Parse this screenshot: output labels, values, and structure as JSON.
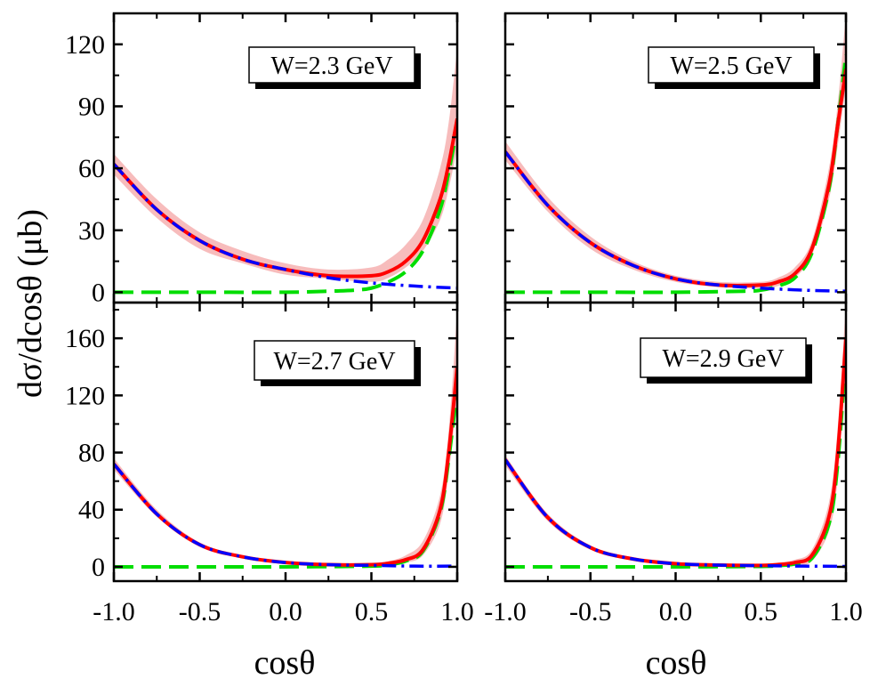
{
  "figure": {
    "ylabel": "dσ/dcosθ (μb)",
    "xlabel": "cosθ"
  },
  "colors": {
    "band": "#f4a6a6",
    "total": "#ff0000",
    "u_channel": "#0000ff",
    "t_channel": "#00dd00",
    "axis": "#000000"
  },
  "chart_data": [
    {
      "type": "line",
      "label": "W=2.3 GeV",
      "xlim": [
        -1.0,
        1.0
      ],
      "ylim": [
        -5,
        135
      ],
      "xticks": [
        -1.0,
        -0.5,
        0.0,
        0.5,
        1.0
      ],
      "yticks": [
        0,
        30,
        60,
        90,
        120
      ],
      "series": [
        {
          "style": "band",
          "x": [
            -1.0,
            -0.75,
            -0.5,
            -0.25,
            0.0,
            0.25,
            0.5,
            0.6,
            0.7,
            0.8,
            0.9,
            0.95,
            1.0
          ],
          "lower": [
            57,
            36,
            21,
            14,
            8.5,
            6.5,
            5,
            7,
            12,
            20,
            35,
            50,
            70
          ],
          "upper": [
            67,
            45,
            29,
            20,
            14,
            11,
            12,
            16,
            23,
            35,
            60,
            82,
            118
          ]
        },
        {
          "style": "solid",
          "color_key": "total",
          "x": [
            -1.0,
            -0.75,
            -0.5,
            -0.25,
            0.0,
            0.25,
            0.5,
            0.6,
            0.7,
            0.8,
            0.9,
            0.95,
            1.0
          ],
          "y": [
            62,
            40,
            25,
            16,
            11,
            8,
            8,
            10,
            15,
            25,
            45,
            62,
            84
          ]
        },
        {
          "style": "dashdot",
          "color_key": "u_channel",
          "x": [
            -1.0,
            -0.75,
            -0.5,
            -0.25,
            0.0,
            0.25,
            0.5,
            0.75,
            1.0
          ],
          "y": [
            62,
            40,
            25,
            16,
            11,
            7,
            4.5,
            3,
            2
          ]
        },
        {
          "style": "dashed",
          "color_key": "t_channel",
          "x": [
            -1.0,
            -0.5,
            0.0,
            0.25,
            0.4,
            0.5,
            0.6,
            0.7,
            0.8,
            0.9,
            0.95,
            1.0
          ],
          "y": [
            0,
            0,
            0,
            0.5,
            1,
            2,
            5,
            10,
            20,
            40,
            58,
            80
          ]
        }
      ]
    },
    {
      "type": "line",
      "label": "W=2.5 GeV",
      "xlim": [
        -1.0,
        1.0
      ],
      "ylim": [
        -5,
        135
      ],
      "xticks": [
        -1.0,
        -0.5,
        0.0,
        0.5,
        1.0
      ],
      "yticks": [
        0,
        30,
        60,
        90,
        120
      ],
      "series": [
        {
          "style": "band",
          "x": [
            -1.0,
            -0.75,
            -0.5,
            -0.25,
            0.0,
            0.25,
            0.5,
            0.6,
            0.7,
            0.8,
            0.9,
            0.95,
            1.0
          ],
          "lower": [
            64,
            39,
            21,
            11,
            5,
            2.5,
            2,
            3,
            7,
            18,
            45,
            70,
            100
          ],
          "upper": [
            73,
            46,
            27,
            15,
            8,
            5,
            5,
            7,
            12,
            25,
            60,
            90,
            135
          ]
        },
        {
          "style": "solid",
          "color_key": "total",
          "x": [
            -1.0,
            -0.75,
            -0.5,
            -0.25,
            0.0,
            0.25,
            0.5,
            0.6,
            0.7,
            0.8,
            0.9,
            0.95,
            1.0
          ],
          "y": [
            68,
            42,
            24,
            13,
            6.5,
            3.5,
            3.5,
            5,
            9,
            21,
            52,
            80,
            108
          ]
        },
        {
          "style": "dashdot",
          "color_key": "u_channel",
          "x": [
            -1.0,
            -0.75,
            -0.5,
            -0.25,
            0.0,
            0.25,
            0.5,
            0.75,
            1.0
          ],
          "y": [
            68,
            42,
            24,
            13,
            6.5,
            3.5,
            2,
            1,
            0.5
          ]
        },
        {
          "style": "dashed",
          "color_key": "t_channel",
          "x": [
            -1.0,
            -0.5,
            0.0,
            0.4,
            0.5,
            0.6,
            0.7,
            0.8,
            0.9,
            0.95,
            1.0
          ],
          "y": [
            0,
            0,
            0,
            0.5,
            1,
            3,
            7,
            19,
            50,
            80,
            115
          ]
        }
      ]
    },
    {
      "type": "line",
      "label": "W=2.7 GeV",
      "xlim": [
        -1.0,
        1.0
      ],
      "ylim": [
        -10,
        185
      ],
      "xticks": [
        -1.0,
        -0.5,
        0.0,
        0.5,
        1.0
      ],
      "yticks": [
        0,
        40,
        80,
        120,
        160
      ],
      "series": [
        {
          "style": "band",
          "x": [
            -1.0,
            -0.75,
            -0.5,
            -0.25,
            0.0,
            0.25,
            0.5,
            0.6,
            0.7,
            0.8,
            0.9,
            0.95,
            1.0
          ],
          "lower": [
            68,
            35,
            14,
            6,
            2,
            0.5,
            0.5,
            1,
            3,
            8,
            30,
            65,
            120
          ],
          "upper": [
            76,
            40,
            17,
            8,
            4,
            2.5,
            2.5,
            4,
            8,
            18,
            50,
            95,
            180
          ]
        },
        {
          "style": "solid",
          "color_key": "total",
          "x": [
            -1.0,
            -0.75,
            -0.5,
            -0.25,
            0.0,
            0.25,
            0.5,
            0.6,
            0.7,
            0.8,
            0.9,
            0.95,
            1.0
          ],
          "y": [
            72,
            37,
            15.5,
            7,
            3,
            1.5,
            1.5,
            2.5,
            5,
            12,
            40,
            80,
            140
          ]
        },
        {
          "style": "dashdot",
          "color_key": "u_channel",
          "x": [
            -1.0,
            -0.75,
            -0.5,
            -0.25,
            0.0,
            0.25,
            0.5,
            0.75,
            1.0
          ],
          "y": [
            72,
            37,
            15.5,
            7,
            3,
            1.5,
            1,
            0.5,
            0.5
          ]
        },
        {
          "style": "dashed",
          "color_key": "t_channel",
          "x": [
            -1.0,
            -0.5,
            0.0,
            0.5,
            0.6,
            0.7,
            0.8,
            0.9,
            0.95,
            1.0
          ],
          "y": [
            0,
            0,
            0,
            0.5,
            1.5,
            4,
            11,
            38,
            75,
            125
          ]
        }
      ]
    },
    {
      "type": "line",
      "label": "W=2.9 GeV",
      "xlim": [
        -1.0,
        1.0
      ],
      "ylim": [
        -10,
        185
      ],
      "xticks": [
        -1.0,
        -0.5,
        0.0,
        0.5,
        1.0
      ],
      "yticks": [
        0,
        40,
        80,
        120,
        160
      ],
      "series": [
        {
          "style": "band",
          "x": [
            -1.0,
            -0.75,
            -0.5,
            -0.25,
            0.0,
            0.25,
            0.5,
            0.6,
            0.7,
            0.8,
            0.9,
            0.95,
            1.0
          ],
          "lower": [
            71,
            32,
            12,
            4.5,
            1.5,
            0.5,
            0.3,
            0.5,
            1,
            4,
            25,
            60,
            140
          ],
          "upper": [
            78,
            37,
            15,
            6.5,
            3,
            2,
            2,
            3,
            5,
            12,
            45,
            95,
            185
          ]
        },
        {
          "style": "solid",
          "color_key": "total",
          "x": [
            -1.0,
            -0.75,
            -0.5,
            -0.25,
            0.0,
            0.25,
            0.5,
            0.6,
            0.7,
            0.8,
            0.9,
            0.95,
            1.0
          ],
          "y": [
            75,
            34.5,
            13.5,
            5.5,
            2.2,
            1.2,
            1,
            1.5,
            3,
            8,
            35,
            78,
            160
          ]
        },
        {
          "style": "dashdot",
          "color_key": "u_channel",
          "x": [
            -1.0,
            -0.75,
            -0.5,
            -0.25,
            0.0,
            0.25,
            0.5,
            0.75,
            1.0
          ],
          "y": [
            75,
            34.5,
            13.5,
            5.5,
            2.2,
            1.2,
            0.8,
            0.5,
            0.3
          ]
        },
        {
          "style": "dashed",
          "color_key": "t_channel",
          "x": [
            -1.0,
            -0.5,
            0.0,
            0.5,
            0.6,
            0.7,
            0.8,
            0.9,
            0.95,
            1.0
          ],
          "y": [
            0,
            0,
            0,
            0.3,
            0.8,
            2,
            6,
            30,
            70,
            150
          ]
        }
      ]
    }
  ]
}
